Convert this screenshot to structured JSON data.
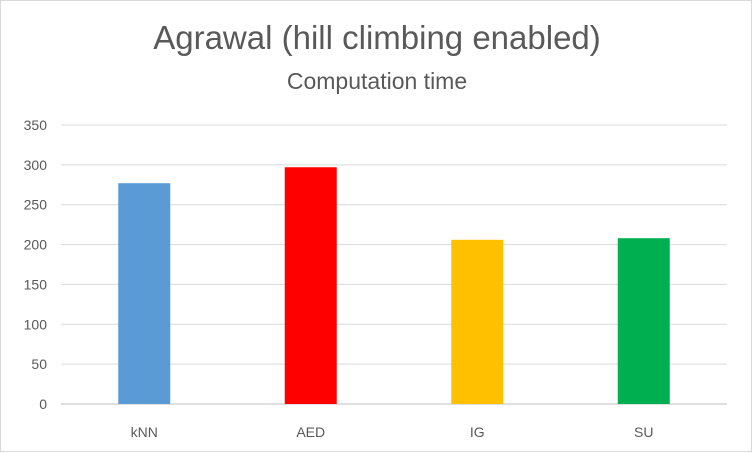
{
  "chart_data": {
    "type": "bar",
    "title": "Agrawal (hill climbing enabled)",
    "subtitle": "Computation time",
    "xlabel": "",
    "ylabel": "",
    "categories": [
      "kNN",
      "AED",
      "IG",
      "SU"
    ],
    "values": [
      277,
      297,
      206,
      208
    ],
    "colors": [
      "#5b9bd5",
      "#ff0000",
      "#ffc000",
      "#00b050"
    ],
    "ylim": [
      0,
      350
    ],
    "yticks": [
      0,
      50,
      100,
      150,
      200,
      250,
      300,
      350
    ],
    "ytick_labels": [
      "0",
      "50",
      "100",
      "150",
      "200",
      "250",
      "300",
      "350"
    ],
    "grid": true,
    "legend": "none"
  }
}
